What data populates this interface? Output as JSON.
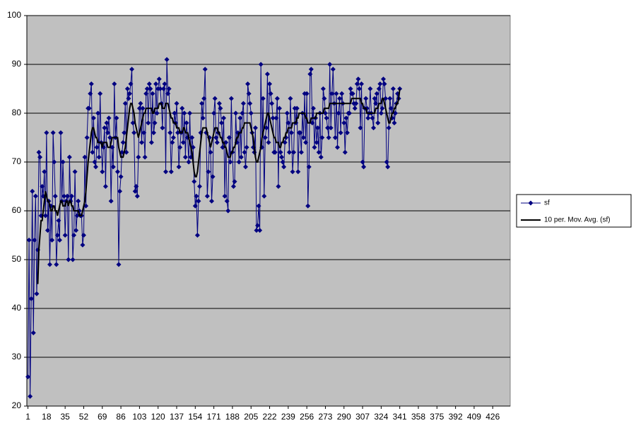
{
  "chart_data": {
    "type": "line",
    "x": [
      1,
      2,
      3,
      4,
      5,
      6,
      7,
      8,
      9,
      10,
      11,
      12,
      13,
      14,
      15,
      16,
      17,
      18,
      19,
      20,
      21,
      22,
      23,
      24,
      25,
      26,
      27,
      28,
      29,
      30,
      31,
      32,
      33,
      34,
      35,
      36,
      37,
      38,
      39,
      40,
      41,
      42,
      43,
      44,
      45,
      46,
      47,
      48,
      49,
      50,
      51,
      52,
      53,
      54,
      55,
      56,
      57,
      58,
      59,
      60,
      61,
      62,
      63,
      64,
      65,
      66,
      67,
      68,
      69,
      70,
      71,
      72,
      73,
      74,
      75,
      76,
      77,
      78,
      79,
      80,
      81,
      82,
      83,
      84,
      85,
      86,
      87,
      88,
      89,
      90,
      91,
      92,
      93,
      94,
      95,
      96,
      97,
      98,
      99,
      100,
      101,
      102,
      103,
      104,
      105,
      106,
      107,
      108,
      109,
      110,
      111,
      112,
      113,
      114,
      115,
      116,
      117,
      118,
      119,
      120,
      121,
      122,
      123,
      124,
      125,
      126,
      127,
      128,
      129,
      130,
      131,
      132,
      133,
      134,
      135,
      136,
      137,
      138,
      139,
      140,
      141,
      142,
      143,
      144,
      145,
      146,
      147,
      148,
      149,
      150,
      151,
      152,
      153,
      154,
      155,
      156,
      157,
      158,
      159,
      160,
      161,
      162,
      163,
      164,
      165,
      166,
      167,
      168,
      169,
      170,
      171,
      172,
      173,
      174,
      175,
      176,
      177,
      178,
      179,
      180,
      181,
      182,
      183,
      184,
      185,
      186,
      187,
      188,
      189,
      190,
      191,
      192,
      193,
      194,
      195,
      196,
      197,
      198,
      199,
      200,
      201,
      202,
      203,
      204,
      205,
      206,
      207,
      208,
      209,
      210,
      211,
      212,
      213,
      214,
      215,
      216,
      217,
      218,
      219,
      220,
      221,
      222,
      223,
      224,
      225,
      226,
      227,
      228,
      229,
      230,
      231,
      232,
      233,
      234,
      235,
      236,
      237,
      238,
      239,
      240,
      241,
      242,
      243,
      244,
      245,
      246,
      247,
      248,
      249,
      250,
      251,
      252,
      253,
      254,
      255,
      256,
      257,
      258,
      259,
      260,
      261,
      262,
      263,
      264,
      265,
      266,
      267,
      268,
      269,
      270,
      271,
      272,
      273,
      274,
      275,
      276,
      277,
      278,
      279,
      280,
      281,
      282,
      283,
      284,
      285,
      286,
      287,
      288,
      289,
      290,
      291,
      292,
      293,
      294,
      295,
      296,
      297,
      298,
      299,
      300,
      301,
      302,
      303,
      304,
      305,
      306,
      307,
      308,
      309,
      310,
      311,
      312,
      313,
      314,
      315,
      316,
      317,
      318,
      319,
      320,
      321,
      322,
      323,
      324,
      325,
      326,
      327,
      328,
      329,
      330,
      331,
      332,
      333,
      334,
      335,
      336,
      337,
      338,
      339,
      340,
      341
    ],
    "series": [
      {
        "name": "sf",
        "color": "#000080",
        "marker": "diamond",
        "values": [
          26,
          54,
          22,
          42,
          64,
          35,
          54,
          63,
          43,
          52,
          72,
          71,
          59,
          65,
          63,
          68,
          59,
          76,
          56,
          62,
          49,
          61,
          54,
          76,
          70,
          63,
          49,
          55,
          58,
          54,
          76,
          62,
          70,
          63,
          55,
          62,
          63,
          50,
          71,
          62,
          63,
          50,
          55,
          68,
          56,
          59,
          62,
          60,
          59,
          59,
          53,
          55,
          71,
          61,
          75,
          81,
          81,
          84,
          86,
          72,
          79,
          70,
          69,
          73,
          80,
          71,
          84,
          74,
          68,
          73,
          77,
          65,
          78,
          76,
          79,
          75,
          62,
          73,
          69,
          86,
          75,
          79,
          68,
          49,
          64,
          67,
          72,
          74,
          76,
          82,
          72,
          85,
          83,
          84,
          86,
          89,
          78,
          76,
          64,
          65,
          63,
          71,
          81,
          82,
          74,
          81,
          76,
          71,
          84,
          85,
          78,
          86,
          85,
          74,
          84,
          76,
          78,
          86,
          80,
          85,
          87,
          85,
          82,
          77,
          85,
          86,
          68,
          91,
          84,
          85,
          76,
          68,
          74,
          75,
          80,
          78,
          82,
          76,
          69,
          73,
          76,
          81,
          74,
          80,
          71,
          78,
          75,
          70,
          80,
          71,
          75,
          73,
          66,
          61,
          63,
          55,
          62,
          65,
          76,
          82,
          79,
          83,
          89,
          76,
          63,
          68,
          75,
          72,
          62,
          67,
          80,
          83,
          75,
          74,
          76,
          82,
          81,
          78,
          73,
          79,
          63,
          74,
          62,
          60,
          75,
          70,
          83,
          72,
          65,
          66,
          80,
          74,
          76,
          70,
          79,
          71,
          80,
          82,
          72,
          69,
          73,
          86,
          84,
          82,
          80,
          76,
          73,
          72,
          77,
          56,
          57,
          61,
          56,
          90,
          73,
          83,
          63,
          75,
          77,
          88,
          74,
          86,
          84,
          82,
          79,
          72,
          72,
          79,
          83,
          65,
          81,
          72,
          71,
          70,
          69,
          74,
          75,
          80,
          78,
          72,
          83,
          76,
          68,
          72,
          81,
          78,
          81,
          68,
          76,
          76,
          72,
          80,
          75,
          84,
          74,
          84,
          61,
          69,
          88,
          89,
          78,
          81,
          73,
          79,
          74,
          77,
          72,
          80,
          71,
          75,
          85,
          83,
          80,
          79,
          77,
          75,
          90,
          77,
          84,
          89,
          82,
          75,
          84,
          73,
          80,
          83,
          76,
          84,
          82,
          78,
          72,
          79,
          76,
          80,
          80,
          85,
          84,
          84,
          82,
          81,
          82,
          86,
          87,
          85,
          77,
          86,
          70,
          69,
          81,
          83,
          81,
          79,
          80,
          85,
          80,
          79,
          77,
          83,
          82,
          84,
          78,
          85,
          86,
          80,
          81,
          87,
          86,
          83,
          70,
          69,
          77,
          83,
          81,
          79,
          85,
          78,
          80,
          82,
          84,
          83,
          85
        ]
      },
      {
        "name": "10 per. Mov. Avg. (sf)",
        "color": "#000000",
        "values": [
          null,
          null,
          null,
          null,
          null,
          null,
          null,
          null,
          null,
          45,
          52,
          55,
          58,
          58,
          60,
          62,
          64,
          63,
          62,
          62,
          61,
          60,
          60,
          61,
          61,
          60,
          60,
          59,
          60,
          61,
          62,
          62,
          61,
          61,
          61,
          62,
          62,
          61,
          62,
          62,
          61,
          61,
          60,
          60,
          60,
          60,
          60,
          59,
          59,
          59,
          60,
          61,
          62,
          64,
          67,
          70,
          72,
          74,
          76,
          77,
          77,
          76,
          75,
          75,
          74,
          74,
          74,
          74,
          73,
          74,
          74,
          74,
          74,
          73,
          73,
          73,
          74,
          75,
          75,
          75,
          75,
          75,
          75,
          73,
          72,
          71,
          71,
          71,
          72,
          73,
          75,
          77,
          79,
          81,
          82,
          82,
          81,
          80,
          78,
          77,
          76,
          75,
          76,
          77,
          78,
          79,
          80,
          80,
          81,
          81,
          81,
          81,
          81,
          81,
          80,
          80,
          81,
          81,
          81,
          81,
          82,
          82,
          82,
          81,
          81,
          81,
          82,
          82,
          82,
          81,
          80,
          79,
          79,
          78,
          78,
          78,
          77,
          77,
          77,
          76,
          76,
          76,
          77,
          77,
          76,
          76,
          76,
          75,
          74,
          73,
          72,
          70,
          68,
          67,
          67,
          68,
          70,
          72,
          74,
          76,
          77,
          77,
          77,
          77,
          76,
          75,
          74,
          73,
          74,
          75,
          76,
          77,
          77,
          77,
          76,
          76,
          75,
          75,
          74,
          74,
          73,
          73,
          72,
          71,
          71,
          71,
          72,
          72,
          73,
          73,
          74,
          75,
          75,
          76,
          76,
          76,
          77,
          77,
          78,
          78,
          78,
          78,
          78,
          78,
          77,
          76,
          75,
          73,
          71,
          70,
          70,
          71,
          72,
          73,
          75,
          76,
          77,
          78,
          79,
          80,
          80,
          79,
          78,
          77,
          76,
          75,
          75,
          74,
          74,
          74,
          73,
          73,
          74,
          74,
          75,
          75,
          76,
          76,
          77,
          77,
          77,
          77,
          78,
          78,
          78,
          78,
          79,
          79,
          80,
          80,
          80,
          80,
          80,
          80,
          79,
          79,
          78,
          78,
          78,
          79,
          79,
          79,
          79,
          79,
          80,
          80,
          80,
          80,
          80,
          80,
          80,
          81,
          81,
          81,
          81,
          81,
          82,
          82,
          82,
          82,
          82,
          82,
          82,
          82,
          82,
          82,
          82,
          82,
          82,
          82,
          82,
          82,
          82,
          82,
          82,
          82,
          83,
          83,
          83,
          83,
          83,
          83,
          83,
          83,
          83,
          82,
          82,
          81,
          81,
          81,
          80,
          80,
          80,
          80,
          80,
          80,
          80,
          80,
          81,
          81,
          81,
          82,
          82,
          82,
          83,
          83,
          82,
          81,
          80,
          79,
          78,
          78,
          79,
          80,
          80,
          81,
          81,
          82,
          82,
          83,
          85
        ]
      }
    ],
    "xlim": [
      0,
      442
    ],
    "xticks": [
      1,
      18,
      35,
      52,
      69,
      86,
      103,
      120,
      137,
      154,
      171,
      188,
      205,
      222,
      239,
      256,
      273,
      290,
      307,
      324,
      341,
      358,
      375,
      392,
      409,
      426
    ],
    "ylim": [
      20,
      100
    ],
    "yticks": [
      20,
      30,
      40,
      50,
      60,
      70,
      80,
      90,
      100
    ],
    "grid": true,
    "legend": "right"
  }
}
